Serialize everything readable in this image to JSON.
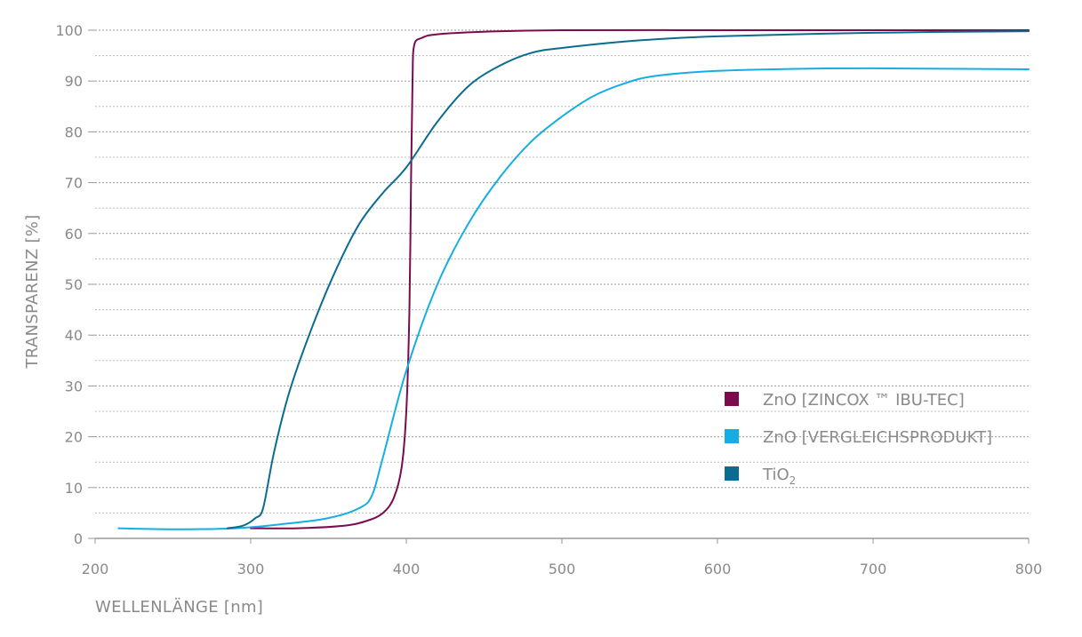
{
  "chart_data": {
    "type": "line",
    "title": "",
    "xlabel": "WELLENLÄNGE [nm]",
    "ylabel": "TRANSPARENZ [%]",
    "xlim": [
      200,
      800
    ],
    "ylim": [
      0,
      100
    ],
    "x_ticks": [
      200,
      300,
      400,
      500,
      600,
      700,
      800
    ],
    "y_ticks": [
      0,
      10,
      20,
      30,
      40,
      50,
      60,
      70,
      80,
      90,
      100
    ],
    "grid": true,
    "legend_position": "bottom-right",
    "series": [
      {
        "name": "ZnO [ZINCOX ™ IBU-TEC]",
        "color": "#7b0a4f",
        "points": [
          [
            300,
            2
          ],
          [
            330,
            2
          ],
          [
            360,
            2.5
          ],
          [
            375,
            3.5
          ],
          [
            385,
            5
          ],
          [
            392,
            8
          ],
          [
            397,
            14
          ],
          [
            400,
            25
          ],
          [
            402,
            45
          ],
          [
            403,
            70
          ],
          [
            404,
            90
          ],
          [
            405,
            97
          ],
          [
            410,
            98.5
          ],
          [
            420,
            99.2
          ],
          [
            450,
            99.7
          ],
          [
            500,
            100
          ],
          [
            600,
            100
          ],
          [
            700,
            100
          ],
          [
            800,
            100
          ]
        ]
      },
      {
        "name": "ZnO [VERGLEICHSPRODUKT]",
        "color": "#16aee2",
        "points": [
          [
            215,
            2
          ],
          [
            250,
            1.8
          ],
          [
            290,
            2
          ],
          [
            320,
            2.8
          ],
          [
            350,
            4
          ],
          [
            370,
            6
          ],
          [
            378,
            8.5
          ],
          [
            385,
            16
          ],
          [
            400,
            33
          ],
          [
            420,
            50
          ],
          [
            440,
            62
          ],
          [
            460,
            71
          ],
          [
            480,
            78
          ],
          [
            500,
            83
          ],
          [
            520,
            87
          ],
          [
            540,
            89.5
          ],
          [
            560,
            91
          ],
          [
            600,
            92
          ],
          [
            650,
            92.4
          ],
          [
            700,
            92.5
          ],
          [
            800,
            92.3
          ]
        ]
      },
      {
        "name": "TiO2",
        "legend_label": "TiO",
        "legend_subscript": "2",
        "color": "#0a6d8f",
        "points": [
          [
            285,
            2
          ],
          [
            295,
            2.5
          ],
          [
            303,
            4
          ],
          [
            308,
            6
          ],
          [
            315,
            17
          ],
          [
            325,
            29
          ],
          [
            340,
            42
          ],
          [
            355,
            53
          ],
          [
            370,
            62
          ],
          [
            385,
            68
          ],
          [
            400,
            73
          ],
          [
            420,
            82
          ],
          [
            440,
            89
          ],
          [
            460,
            93
          ],
          [
            480,
            95.5
          ],
          [
            500,
            96.5
          ],
          [
            550,
            98
          ],
          [
            600,
            98.8
          ],
          [
            700,
            99.5
          ],
          [
            800,
            99.8
          ]
        ]
      }
    ]
  }
}
